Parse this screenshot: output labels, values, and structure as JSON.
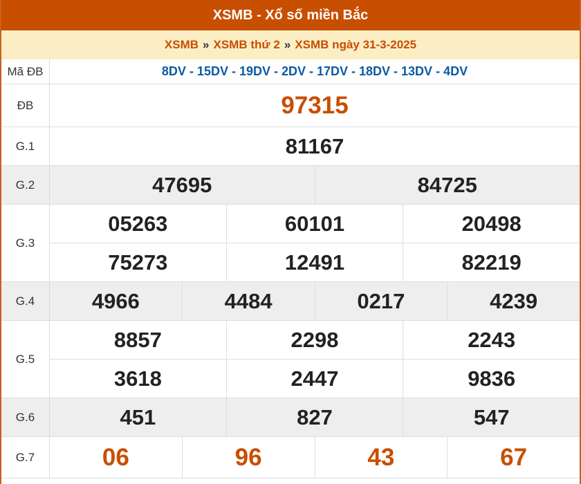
{
  "header": {
    "title": "XSMB - Xổ số miền Bắc"
  },
  "breadcrumb": [
    {
      "label": "XSMB"
    },
    {
      "label": "XSMB thứ 2"
    },
    {
      "label": "XSMB ngày 31-3-2025"
    }
  ],
  "breadcrumb_separator": "»",
  "colors": {
    "header": "#c84e00",
    "breadcrumb_bg": "#fbeec5",
    "code": "#0b5aa5",
    "special": "#c84e00"
  },
  "ma_db": {
    "label": "Mã ĐB",
    "value": "8DV - 15DV - 19DV - 2DV - 17DV - 18DV - 13DV - 4DV"
  },
  "prizes": [
    {
      "label": "ĐB",
      "rows": [
        [
          "97315"
        ]
      ],
      "highlight": true
    },
    {
      "label": "G.1",
      "rows": [
        [
          "81167"
        ]
      ]
    },
    {
      "label": "G.2",
      "rows": [
        [
          "47695",
          "84725"
        ]
      ]
    },
    {
      "label": "G.3",
      "rows": [
        [
          "05263",
          "60101",
          "20498"
        ],
        [
          "75273",
          "12491",
          "82219"
        ]
      ]
    },
    {
      "label": "G.4",
      "rows": [
        [
          "4966",
          "4484",
          "0217",
          "4239"
        ]
      ]
    },
    {
      "label": "G.5",
      "rows": [
        [
          "8857",
          "2298",
          "2243"
        ],
        [
          "3618",
          "2447",
          "9836"
        ]
      ]
    },
    {
      "label": "G.6",
      "rows": [
        [
          "451",
          "827",
          "547"
        ]
      ]
    },
    {
      "label": "G.7",
      "rows": [
        [
          "06",
          "96",
          "43",
          "67"
        ]
      ],
      "highlight": true
    }
  ]
}
